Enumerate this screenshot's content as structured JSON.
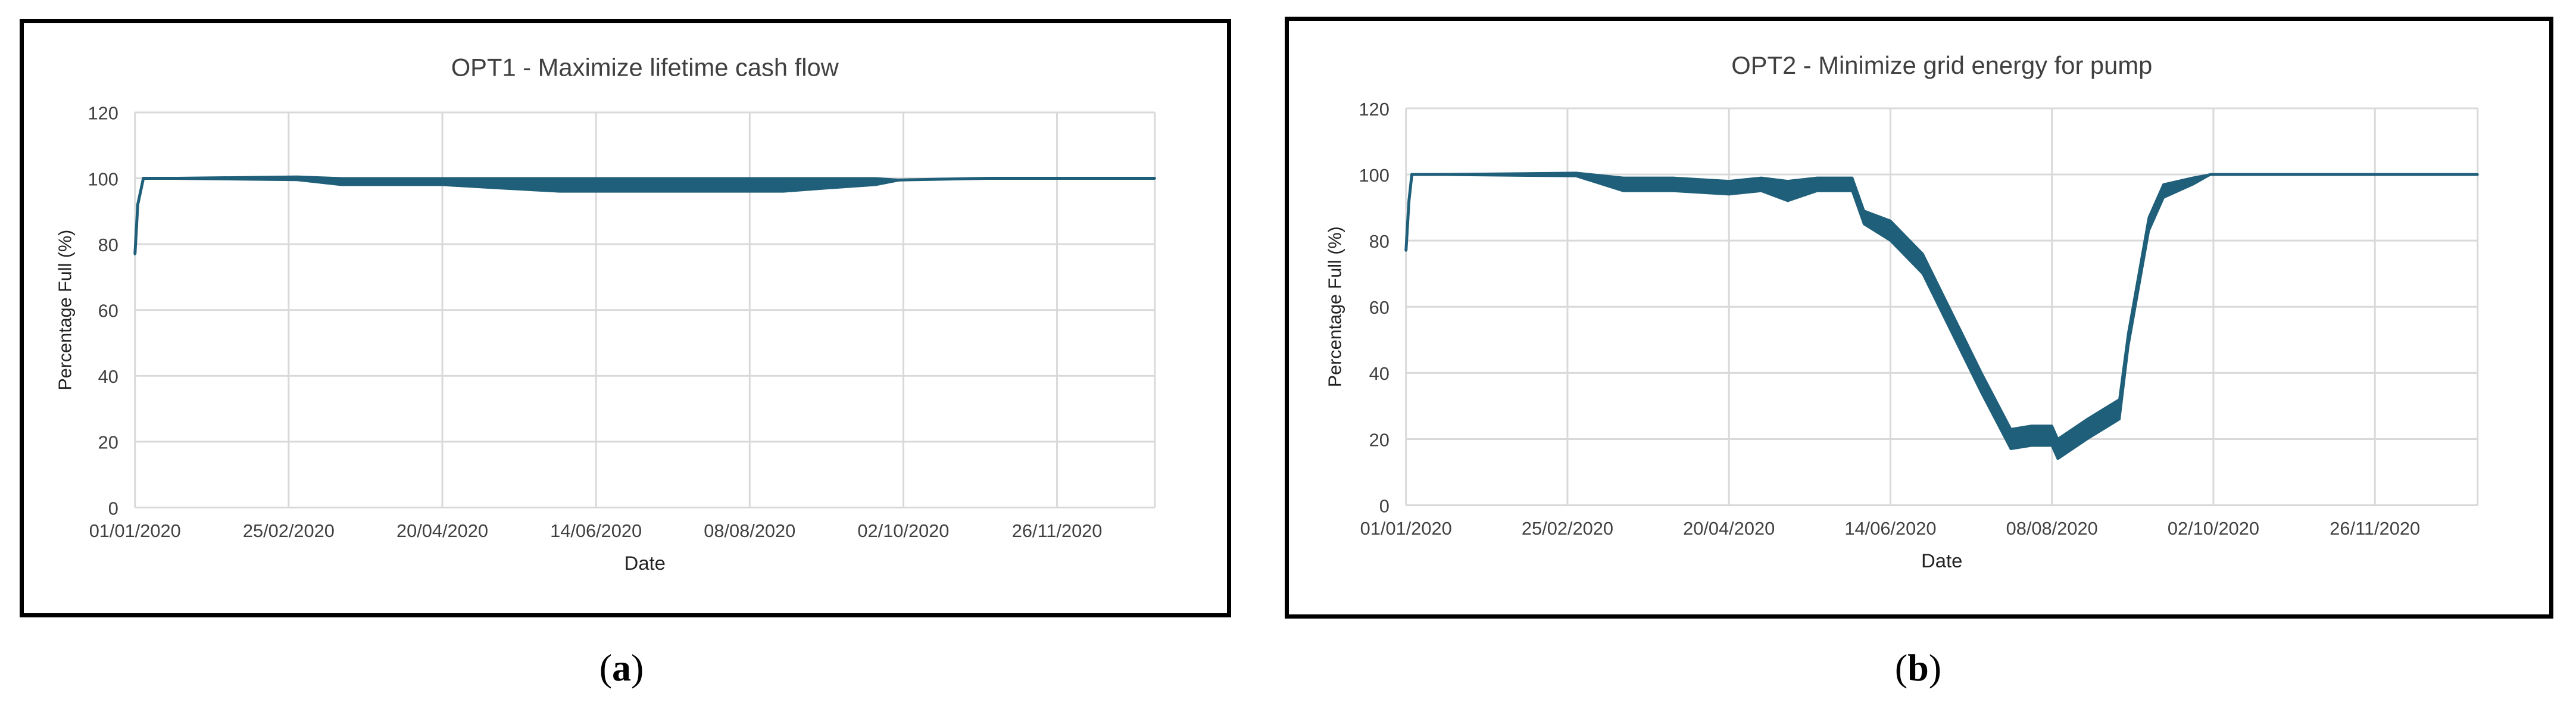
{
  "colors": {
    "series": "#1f5f7a",
    "grid": "#d9d9d9",
    "text": "#404040",
    "frame": "#000000"
  },
  "subfigure_labels": {
    "a": "a",
    "b": "b",
    "open": "(",
    "close": ")"
  },
  "chart_data": [
    {
      "type": "line",
      "title": "OPT1 - Maximize lifetime cash flow",
      "xlabel": "Date",
      "ylabel": "Percentage Full (%)",
      "ylim": [
        0,
        120
      ],
      "yticks": [
        "0",
        "20",
        "40",
        "60",
        "80",
        "100",
        "120"
      ],
      "xtick_labels": [
        "01/01/2020",
        "25/02/2020",
        "20/04/2020",
        "14/06/2020",
        "08/08/2020",
        "02/10/2020",
        "26/11/2020"
      ],
      "x_range": [
        "2020-01-01",
        "2020-12-31"
      ],
      "grid": true,
      "legend": "none",
      "series": [
        {
          "x": [
            "2020-01-01",
            "2020-01-02",
            "2020-01-03",
            "2020-01-04",
            "2020-01-05",
            "2020-02-28",
            "2020-03-15",
            "2020-04-01",
            "2020-04-20",
            "2020-05-10",
            "2020-06-01",
            "2020-06-20",
            "2020-07-10",
            "2020-08-01",
            "2020-08-20",
            "2020-09-05",
            "2020-09-22",
            "2020-10-01",
            "2020-11-01",
            "2020-12-31"
          ],
          "y": [
            77,
            92,
            96,
            100,
            100,
            100,
            99,
            99,
            99,
            98.5,
            98,
            98,
            98,
            98,
            98,
            98.5,
            99,
            99.5,
            100,
            100
          ],
          "band": [
            0,
            0,
            0,
            0,
            0,
            0.5,
            1,
            1,
            1,
            1.5,
            2,
            2,
            2,
            2,
            2,
            1.5,
            1,
            0,
            0,
            0
          ]
        }
      ]
    },
    {
      "type": "line",
      "title": "OPT2 - Minimize grid energy for pump",
      "xlabel": "Date",
      "ylabel": "Percentage Full (%)",
      "ylim": [
        0,
        120
      ],
      "yticks": [
        "0",
        "20",
        "40",
        "60",
        "80",
        "100",
        "120"
      ],
      "xtick_labels": [
        "01/01/2020",
        "25/02/2020",
        "20/04/2020",
        "14/06/2020",
        "08/08/2020",
        "02/10/2020",
        "26/11/2020"
      ],
      "x_range": [
        "2020-01-01",
        "2020-12-31"
      ],
      "grid": true,
      "legend": "none",
      "series": [
        {
          "x": [
            "2020-01-01",
            "2020-01-02",
            "2020-01-03",
            "2020-01-05",
            "2020-02-28",
            "2020-03-15",
            "2020-04-01",
            "2020-04-20",
            "2020-05-01",
            "2020-05-10",
            "2020-05-20",
            "2020-06-01",
            "2020-06-05",
            "2020-06-14",
            "2020-06-25",
            "2020-07-05",
            "2020-07-15",
            "2020-07-25",
            "2020-08-01",
            "2020-08-08",
            "2020-08-10",
            "2020-08-20",
            "2020-08-31",
            "2020-09-03",
            "2020-09-10",
            "2020-09-15",
            "2020-09-25",
            "2020-10-01",
            "2020-11-01",
            "2020-12-31"
          ],
          "y": [
            77,
            92,
            100,
            100,
            100,
            97,
            97,
            96,
            97,
            95,
            97,
            97,
            87,
            83,
            73,
            55,
            37,
            20,
            21,
            21,
            17,
            23,
            29,
            50,
            85,
            95,
            98,
            100,
            100,
            100
          ],
          "band": [
            0,
            0,
            0,
            0,
            0.5,
            2,
            2,
            2,
            2,
            3,
            2,
            2,
            2,
            3,
            3,
            3,
            3,
            3,
            3,
            3,
            3,
            3,
            3,
            2,
            2,
            2,
            1,
            0,
            0,
            0
          ]
        }
      ]
    }
  ]
}
